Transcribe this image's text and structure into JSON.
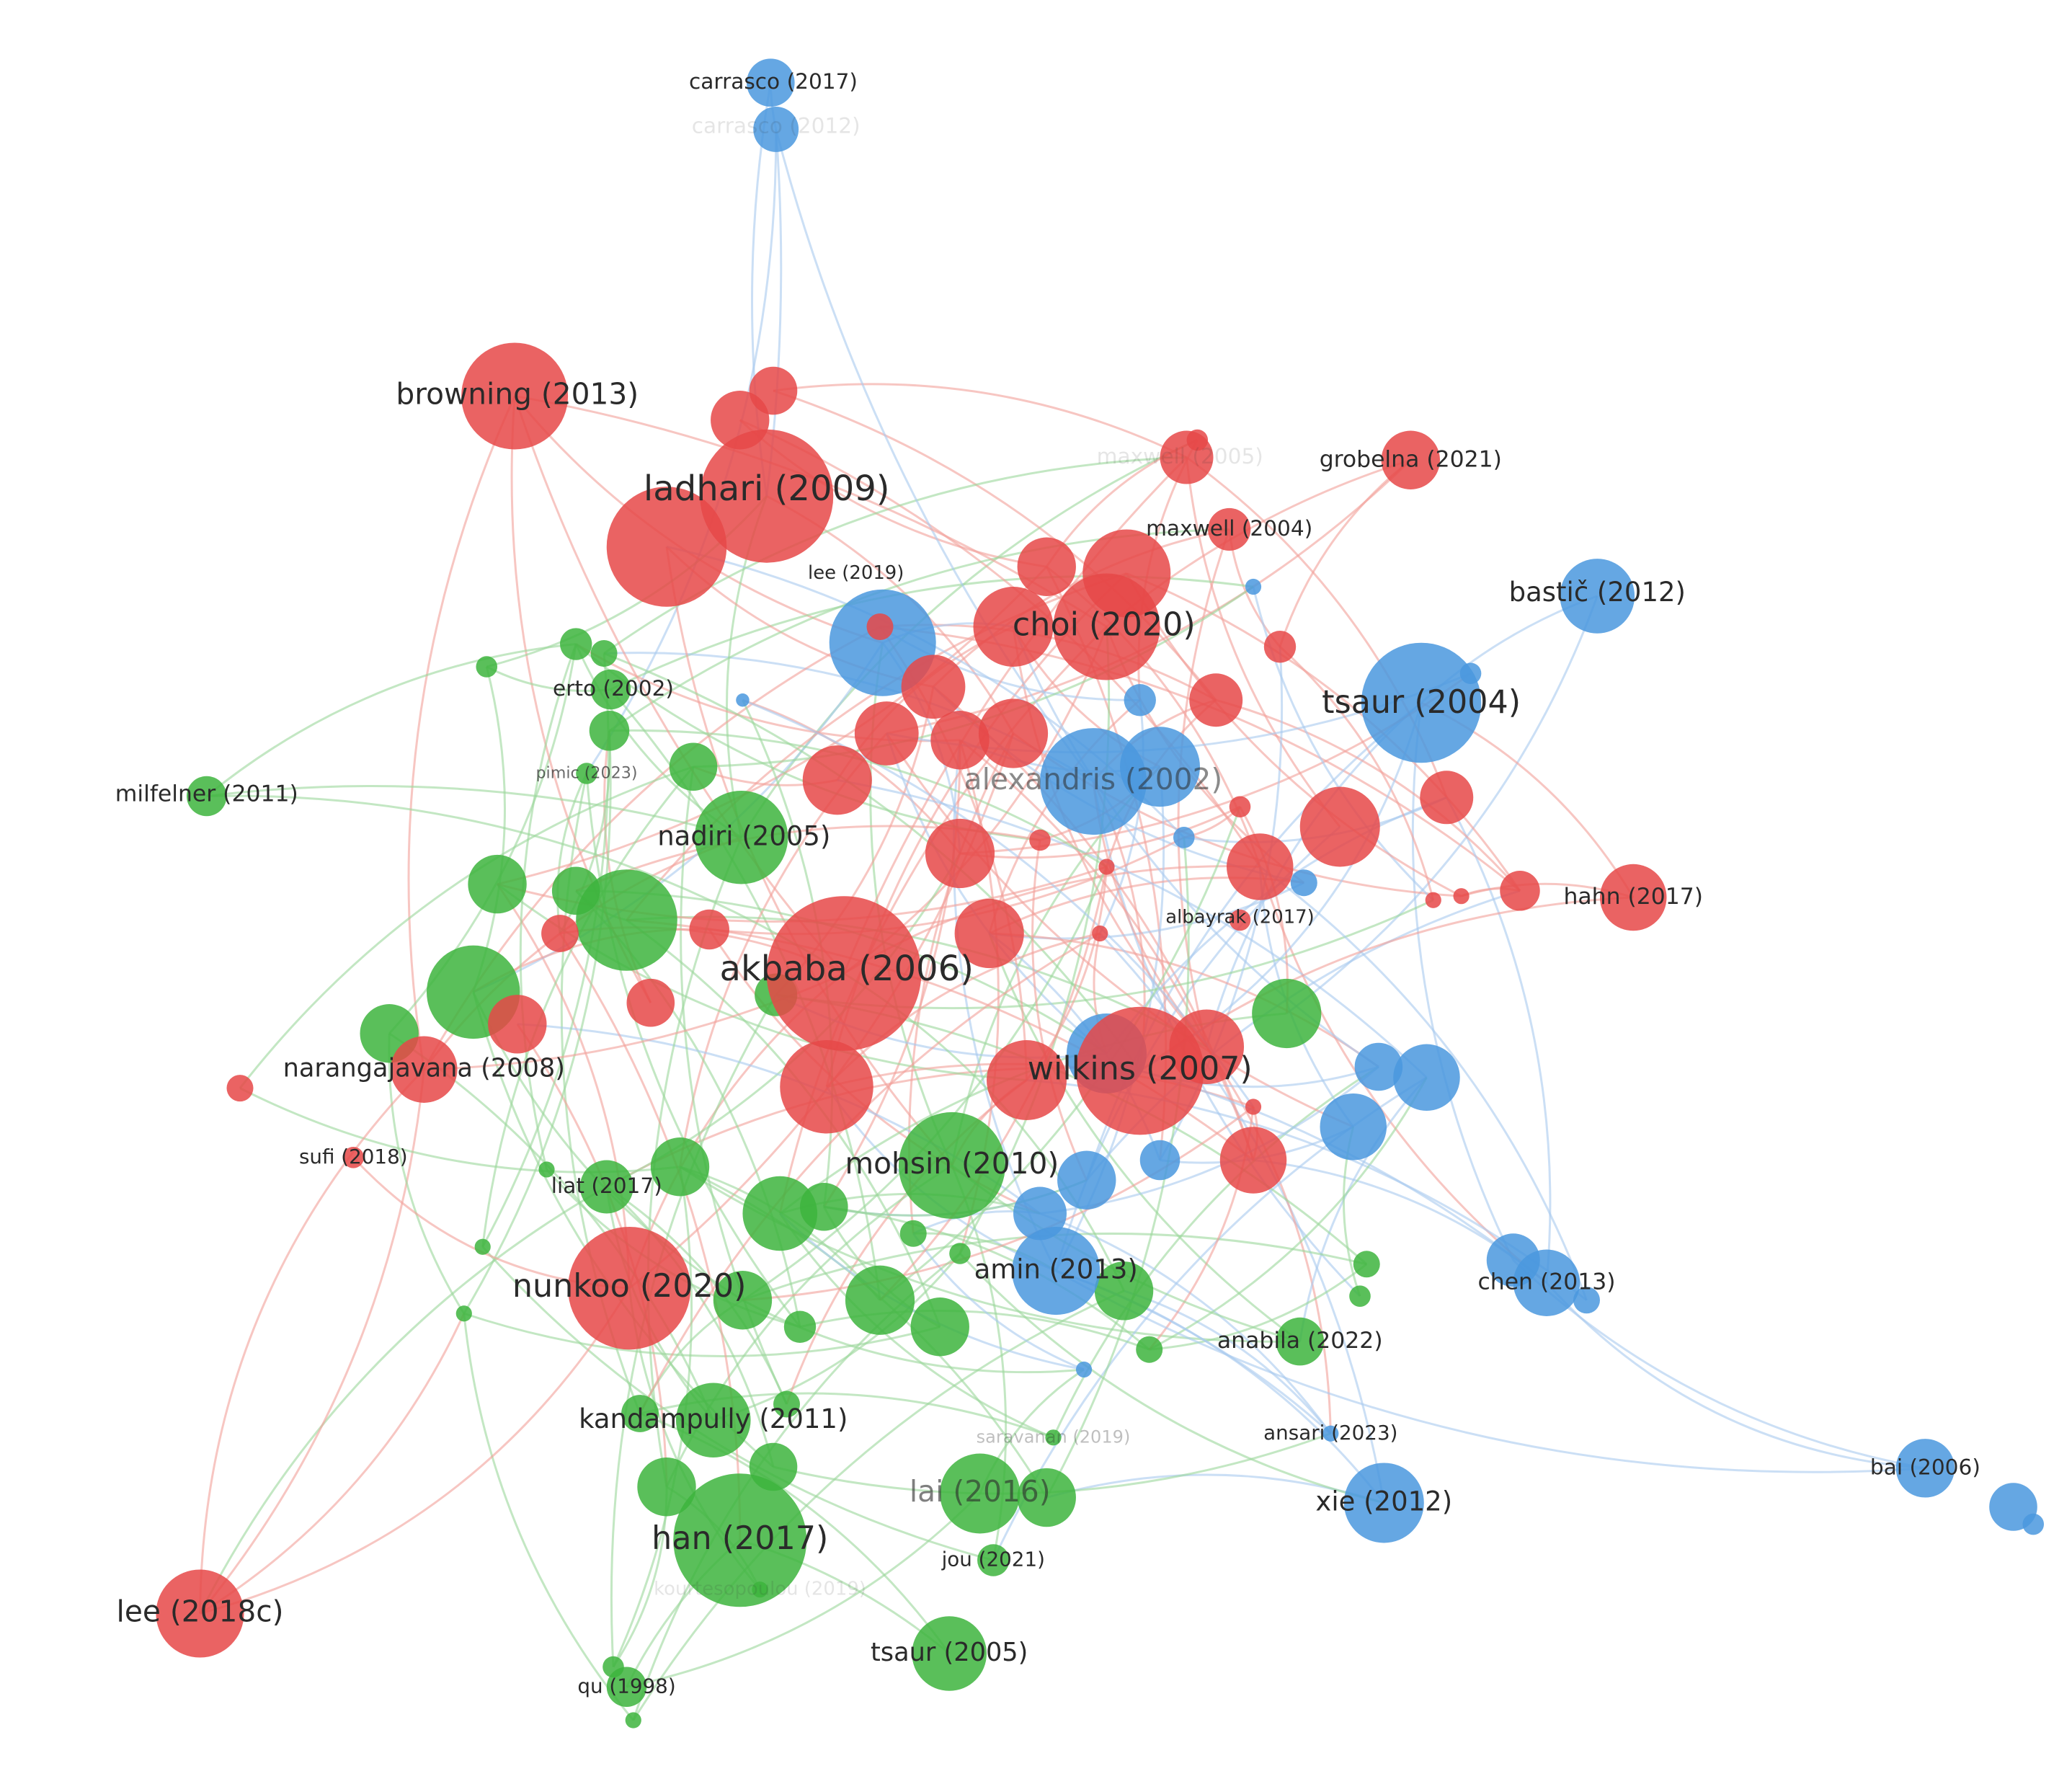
{
  "nodes": [
    {
      "label": "carrasco (2017)"
    },
    {
      "label": "carrasco (2012)"
    },
    {
      "label": "browning (2013)"
    },
    {
      "label": "ladhari (2009)"
    },
    {
      "label": "maxwell (2005)"
    },
    {
      "label": "grobelna (2021)"
    },
    {
      "label": "maxwell (2004)"
    },
    {
      "label": "lee (2019)"
    },
    {
      "label": "choi (2020)"
    },
    {
      "label": "bastič (2012)"
    },
    {
      "label": "tsaur (2004)"
    },
    {
      "label": "erto (2002)"
    },
    {
      "label": "pimic (2023)"
    },
    {
      "label": "milfelner (2011)"
    },
    {
      "label": "alexandris (2002)"
    },
    {
      "label": "nadiri (2005)"
    },
    {
      "label": "hahn (2017)"
    },
    {
      "label": "albayrak (2017)"
    },
    {
      "label": "akbaba (2006)"
    },
    {
      "label": "narangajavana (2008)"
    },
    {
      "label": "wilkins (2007)"
    },
    {
      "label": "sufi (2018)"
    },
    {
      "label": "liat (2017)"
    },
    {
      "label": "mohsin (2010)"
    },
    {
      "label": "nunkoo (2020)"
    },
    {
      "label": "amin (2013)"
    },
    {
      "label": "chen (2013)"
    },
    {
      "label": "anabila (2022)"
    },
    {
      "label": "kandampully (2011)"
    },
    {
      "label": "saravanan (2019)"
    },
    {
      "label": "ansari (2023)"
    },
    {
      "label": "bai (2006)"
    },
    {
      "label": "xie (2012)"
    },
    {
      "label": "lai (2016)"
    },
    {
      "label": "han (2017)"
    },
    {
      "label": "jou (2021)"
    },
    {
      "label": "lee (2018c)"
    },
    {
      "label": "tsaur (2005)"
    },
    {
      "label": "qu (1998)"
    },
    {
      "label": "kourtesopoulou (2019)"
    }
  ]
}
